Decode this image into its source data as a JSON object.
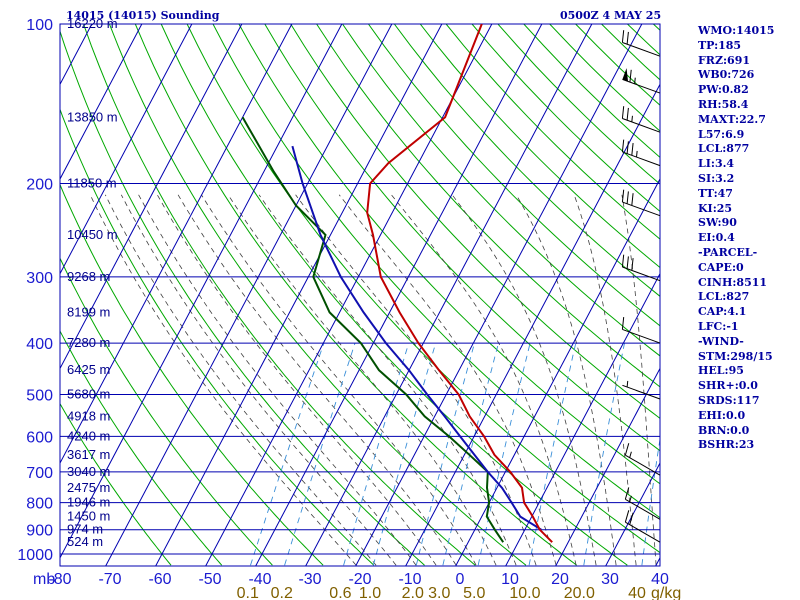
{
  "header": {
    "title": "14015 (14015) Sounding",
    "time": "0500Z  4 MAY 25"
  },
  "indices": [
    "WMO:14015",
    "TP:185",
    "FRZ:691",
    "WB0:726",
    "PW:0.82",
    "RH:58.4",
    "MAXT:22.7",
    "L57:6.9",
    "LCL:877",
    "LI:3.4",
    "SI:3.2",
    "TT:47",
    "KI:25",
    "SW:90",
    "EI:0.4",
    "-PARCEL-",
    "CAPE:0",
    "CINH:8511",
    "LCL:827",
    "CAP:4.1",
    "LFC:-1",
    "-WIND-",
    "STM:298/15",
    "HEL:95",
    "SHR+:0.0",
    "SRDS:117",
    "EHI:0.0",
    "BRN:0.0",
    "BSHR:23"
  ],
  "colors": {
    "grid": "#0000b0",
    "dry_adiabat": "#00a800",
    "moist_adiabat": "#404040",
    "mixing_ratio": "#3a8fd8",
    "temperature": "#c00000",
    "dewpoint": "#005000",
    "parcel": "#1010b0"
  },
  "chart_data": {
    "type": "line",
    "chart_kind": "skew-T log-P sounding",
    "x_axis_unit_label": "mb",
    "x_ticks": [
      -80,
      -70,
      -60,
      -50,
      -40,
      -30,
      -20,
      -10,
      0,
      10,
      20,
      30,
      40
    ],
    "x_tick_labels": [
      "-80",
      "-70",
      "-60",
      "-50",
      "-40",
      "-30",
      "-20",
      "-10",
      "0",
      "10",
      "20",
      "30",
      "40"
    ],
    "p_levels": [
      100,
      200,
      300,
      400,
      500,
      600,
      700,
      800,
      900,
      1000
    ],
    "p_level_labels": [
      "100",
      "200",
      "300",
      "400",
      "500",
      "600",
      "700",
      "800",
      "900",
      "1000"
    ],
    "height_labels": [
      {
        "p": 100,
        "label": "16220 m"
      },
      {
        "p": 150,
        "label": "13850 m"
      },
      {
        "p": 200,
        "label": "11850 m"
      },
      {
        "p": 250,
        "label": "10450 m"
      },
      {
        "p": 300,
        "label": "9268 m"
      },
      {
        "p": 350,
        "label": "8199 m"
      },
      {
        "p": 400,
        "label": "7280 m"
      },
      {
        "p": 450,
        "label": "6425 m"
      },
      {
        "p": 500,
        "label": "5680 m"
      },
      {
        "p": 550,
        "label": "4918 m"
      },
      {
        "p": 600,
        "label": "4240 m"
      },
      {
        "p": 650,
        "label": "3617 m"
      },
      {
        "p": 700,
        "label": "3040 m"
      },
      {
        "p": 750,
        "label": "2475 m"
      },
      {
        "p": 800,
        "label": "1946 m"
      },
      {
        "p": 850,
        "label": "1450 m"
      },
      {
        "p": 900,
        "label": "974 m"
      },
      {
        "p": 950,
        "label": "524 m"
      }
    ],
    "mixing_ratio_labels": [
      {
        "w": 0.1,
        "label": "0.1"
      },
      {
        "w": 0.2,
        "label": "0.2"
      },
      {
        "w": 0.6,
        "label": "0.6"
      },
      {
        "w": 1.0,
        "label": "1.0"
      },
      {
        "w": 2.0,
        "label": "2.0"
      },
      {
        "w": 3.0,
        "label": "3.0"
      },
      {
        "w": 5.0,
        "label": "5.0"
      },
      {
        "w": 10.0,
        "label": "10.0"
      },
      {
        "w": 20.0,
        "label": "20.0"
      },
      {
        "w": 40.0,
        "label": "40"
      }
    ],
    "mixing_ratio_unit": "g/kg",
    "series": [
      {
        "key": "temperature",
        "points": [
          [
            950,
            16.8
          ],
          [
            900,
            13.0
          ],
          [
            850,
            10.2
          ],
          [
            800,
            7.0
          ],
          [
            750,
            5.0
          ],
          [
            700,
            1.0
          ],
          [
            650,
            -4.0
          ],
          [
            600,
            -8.0
          ],
          [
            550,
            -13.0
          ],
          [
            500,
            -17.5
          ],
          [
            450,
            -24.0
          ],
          [
            400,
            -31.0
          ],
          [
            350,
            -38.0
          ],
          [
            300,
            -45.5
          ],
          [
            250,
            -51.5
          ],
          [
            227,
            -55.0
          ],
          [
            200,
            -57.5
          ],
          [
            183,
            -56.0
          ],
          [
            150,
            -49.5
          ],
          [
            100,
            -52.0
          ]
        ]
      },
      {
        "key": "dewpoint",
        "points": [
          [
            950,
            7.0
          ],
          [
            900,
            4.0
          ],
          [
            850,
            1.0
          ],
          [
            800,
            0.0
          ],
          [
            750,
            -2.0
          ],
          [
            700,
            -3.5
          ],
          [
            650,
            -9.0
          ],
          [
            600,
            -15.0
          ],
          [
            550,
            -22.0
          ],
          [
            500,
            -28.0
          ],
          [
            450,
            -36.0
          ],
          [
            400,
            -42.5
          ],
          [
            350,
            -52.0
          ],
          [
            300,
            -59.0
          ],
          [
            250,
            -61.0
          ],
          [
            220,
            -70.0
          ],
          [
            190,
            -78.0
          ],
          [
            150,
            -90.0
          ]
        ]
      },
      {
        "key": "parcel",
        "points": [
          [
            900,
            13.3
          ],
          [
            850,
            7.7
          ],
          [
            800,
            4.5
          ],
          [
            750,
            1.0
          ],
          [
            700,
            -3.5
          ],
          [
            650,
            -8.0
          ],
          [
            600,
            -12.8
          ],
          [
            550,
            -18.0
          ],
          [
            500,
            -23.8
          ],
          [
            450,
            -30.0
          ],
          [
            400,
            -37.5
          ],
          [
            350,
            -45.2
          ],
          [
            300,
            -53.5
          ],
          [
            250,
            -62.0
          ],
          [
            200,
            -71.0
          ],
          [
            170,
            -77.0
          ]
        ]
      }
    ],
    "wind_barbs": [
      {
        "p": 115,
        "dir": 290,
        "kt": 20
      },
      {
        "p": 135,
        "dir": 290,
        "kt": 65
      },
      {
        "p": 160,
        "dir": 290,
        "kt": 25
      },
      {
        "p": 185,
        "dir": 290,
        "kt": 35
      },
      {
        "p": 230,
        "dir": 290,
        "kt": 30
      },
      {
        "p": 305,
        "dir": 290,
        "kt": 30
      },
      {
        "p": 400,
        "dir": 290,
        "kt": 10
      },
      {
        "p": 510,
        "dir": 290,
        "kt": 5
      },
      {
        "p": 710,
        "dir": 300,
        "kt": 15
      },
      {
        "p": 860,
        "dir": 300,
        "kt": 15
      },
      {
        "p": 950,
        "dir": 300,
        "kt": 20
      }
    ]
  }
}
